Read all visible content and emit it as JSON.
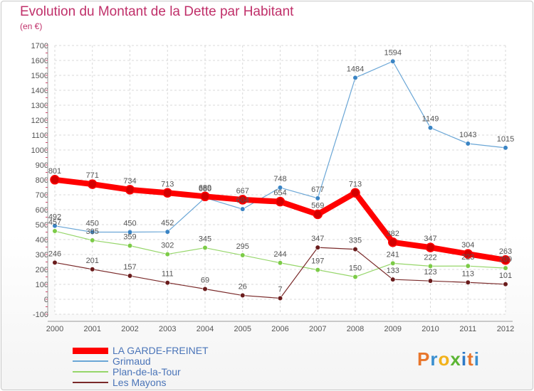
{
  "title": "Evolution du Montant de la Dette par Habitant",
  "subtitle": "(en €)",
  "logo": {
    "chars": [
      "P",
      "r",
      "o",
      "x",
      "i",
      "t",
      "i"
    ],
    "colors": [
      "#e8762c",
      "#3a8fd0",
      "#f2b21b",
      "#5bb533",
      "#2d79c7",
      "#e8762c",
      "#3a8fd0"
    ]
  },
  "chart_data": {
    "type": "line",
    "title": "Evolution du Montant de la Dette par Habitant",
    "ylabel": "(en €)",
    "x": [
      "2000",
      "2001",
      "2002",
      "2003",
      "2004",
      "2005",
      "2006",
      "2007",
      "2008",
      "2009",
      "2010",
      "2011",
      "2012"
    ],
    "ylim": [
      -100,
      1700
    ],
    "yticks": [
      "-100",
      "0",
      "100",
      "200",
      "300",
      "400",
      "500",
      "600",
      "700",
      "800",
      "900",
      "1000",
      "1100",
      "1200",
      "1300",
      "1400",
      "1500",
      "1600",
      "1700"
    ],
    "grid": true,
    "legend_position": "bottom-left",
    "series": [
      {
        "name": "LA GARDE-FREINET",
        "color": "#ff0000",
        "marker": "#d40000",
        "width": 8,
        "values": [
          801,
          771,
          734,
          713,
          689,
          667,
          654,
          569,
          713,
          382,
          347,
          304,
          263
        ]
      },
      {
        "name": "Grimaud",
        "color": "#6aa6d6",
        "marker": "#3a84c4",
        "width": 1.2,
        "values": [
          492,
          450,
          450,
          452,
          680,
          604,
          748,
          677,
          1484,
          1594,
          1149,
          1043,
          1015
        ]
      },
      {
        "name": "Plan-de-la-Tour",
        "color": "#96d66a",
        "marker": "#7ccb47",
        "width": 1.2,
        "values": [
          457,
          395,
          359,
          302,
          345,
          295,
          244,
          197,
          150,
          241,
          222,
          223,
          209
        ]
      },
      {
        "name": "Les Mayons",
        "color": "#7a2a2a",
        "marker": "#6a1c1c",
        "width": 1.2,
        "values": [
          246,
          201,
          157,
          111,
          69,
          26,
          7,
          347,
          335,
          133,
          123,
          113,
          101
        ]
      }
    ]
  }
}
